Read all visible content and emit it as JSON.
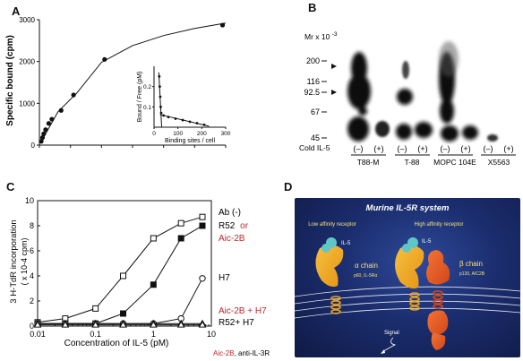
{
  "panelA": {
    "letter": "A",
    "ylabel": "Specific bound (cpm)",
    "yticks": [
      "0",
      "1000",
      "2000",
      "3000"
    ],
    "xticks": [
      "0",
      "0.5",
      "1",
      "1.5",
      "2",
      "2.5",
      "3"
    ],
    "xlabel": "",
    "inset": {
      "ylabel": "Bound / Free (pM)",
      "yticks": [
        "0.1",
        "0.2"
      ],
      "xticks": [
        "0",
        "100",
        "200",
        "300"
      ],
      "xlabel": "Binding sites / cell"
    }
  },
  "panelB": {
    "letter": "B",
    "mr_label": "Mr x 10",
    "mr_exp": "-3",
    "markers": [
      "200",
      "116",
      "92.5",
      "67",
      "45"
    ],
    "cold_label": "Cold IL-5",
    "signs": [
      "(–)",
      "(+)",
      "(–)",
      "(+)",
      "(–)",
      "(+)",
      "(–)",
      "(+)"
    ],
    "cells": [
      "T88-M",
      "T-88",
      "MOPC 104E",
      "X5563"
    ]
  },
  "panelC": {
    "letter": "C",
    "ylabel_line1": "3 H-TdR incorporation",
    "ylabel_line2": "( x 10-4 cpm)",
    "yticks": [
      "0",
      "2",
      "4",
      "6",
      "8",
      "10"
    ],
    "xticks": [
      "0.01",
      "0.1",
      "1",
      "10"
    ],
    "xlabel": "Concentration of IL-5 (pM)",
    "legend": {
      "ab": "Ab (-)",
      "r52": "R52",
      "or": "or",
      "aic2b": "Aic-2B",
      "h7": "H7",
      "aic_h7": "Aic-2B + H7",
      "r52_h7": "R52+ H7"
    },
    "footnote_red": "Aic-2B",
    "footnote_black": ", anti-IL-3R",
    "colors": {
      "red": "#c0272d"
    }
  },
  "chart_data": [
    {
      "type": "line",
      "title": "",
      "xlabel": "",
      "ylabel": "Specific bound (cpm)",
      "xlim": [
        0,
        3
      ],
      "ylim": [
        0,
        3000
      ],
      "series": [
        {
          "name": "",
          "x": [
            0.03,
            0.05,
            0.07,
            0.1,
            0.15,
            0.2,
            0.35,
            0.55,
            1.05,
            2.95
          ],
          "y": [
            90,
            180,
            270,
            370,
            520,
            620,
            830,
            1200,
            2050,
            2870
          ]
        }
      ]
    },
    {
      "type": "scatter",
      "title": "",
      "xlabel": "Binding sites / cell",
      "ylabel": "Bound / Free (pM)",
      "xlim": [
        0,
        300
      ],
      "ylim": [
        0,
        0.3
      ],
      "series": [
        {
          "name": "",
          "x": [
            22,
            24,
            26,
            28,
            30,
            40,
            60,
            90,
            120,
            150,
            180,
            210
          ],
          "y": [
            0.25,
            0.2,
            0.15,
            0.1,
            0.07,
            0.058,
            0.05,
            0.042,
            0.035,
            0.027,
            0.02,
            0.012
          ]
        }
      ]
    },
    {
      "type": "line",
      "title": "",
      "xlabel": "Concentration of IL-5 (pM)",
      "ylabel": "3 H-TdR incorporation ( x 10-4 cpm)",
      "xscale": "log",
      "xlim": [
        0.01,
        10
      ],
      "ylim": [
        0,
        10
      ],
      "series": [
        {
          "name": "Ab (-)",
          "marker": "open-square",
          "x": [
            0.01,
            0.03,
            0.1,
            0.3,
            1,
            3,
            7
          ],
          "y": [
            0.3,
            0.6,
            1.4,
            4.0,
            7.0,
            8.2,
            8.7
          ]
        },
        {
          "name": "R52 or Aic-2B",
          "marker": "filled-square",
          "x": [
            0.01,
            0.03,
            0.1,
            0.3,
            1,
            3,
            7
          ],
          "y": [
            0.2,
            0.2,
            0.2,
            1.0,
            3.3,
            7.0,
            8.0
          ]
        },
        {
          "name": "H7",
          "marker": "open-circle",
          "x": [
            0.01,
            0.03,
            0.1,
            0.3,
            1,
            3,
            7
          ],
          "y": [
            0.2,
            0.2,
            0.2,
            0.2,
            0.2,
            0.6,
            3.8
          ]
        },
        {
          "name": "Aic-2B + H7",
          "marker": "open-triangle",
          "x": [
            0.01,
            0.03,
            0.1,
            0.3,
            1,
            3,
            7
          ],
          "y": [
            0.2,
            0.2,
            0.2,
            0.2,
            0.2,
            0.2,
            0.2
          ]
        },
        {
          "name": "R52+ H7",
          "marker": "open-triangle",
          "x": [
            0.01,
            0.03,
            0.1,
            0.3,
            1,
            3,
            7
          ],
          "y": [
            0.1,
            0.1,
            0.1,
            0.1,
            0.1,
            0.1,
            0.1
          ]
        }
      ]
    }
  ],
  "panelD": {
    "letter": "D",
    "title": "Murine IL-5R system",
    "low_label": "Low affinity receptor",
    "high_label": "High affinity receptor",
    "il5": "IL-5",
    "alpha": "α chain",
    "alpha_sub": "p60, IL-5Rα",
    "beta": "β chain",
    "beta_sub": "p130, AIC2B",
    "signal": "Signal",
    "colors": {
      "bg": "#1b2d6e",
      "alpha": "#f2a51d",
      "beta": "#e9581c",
      "il5": "#5fc8c6",
      "text_yellow": "#f3e27a"
    }
  }
}
